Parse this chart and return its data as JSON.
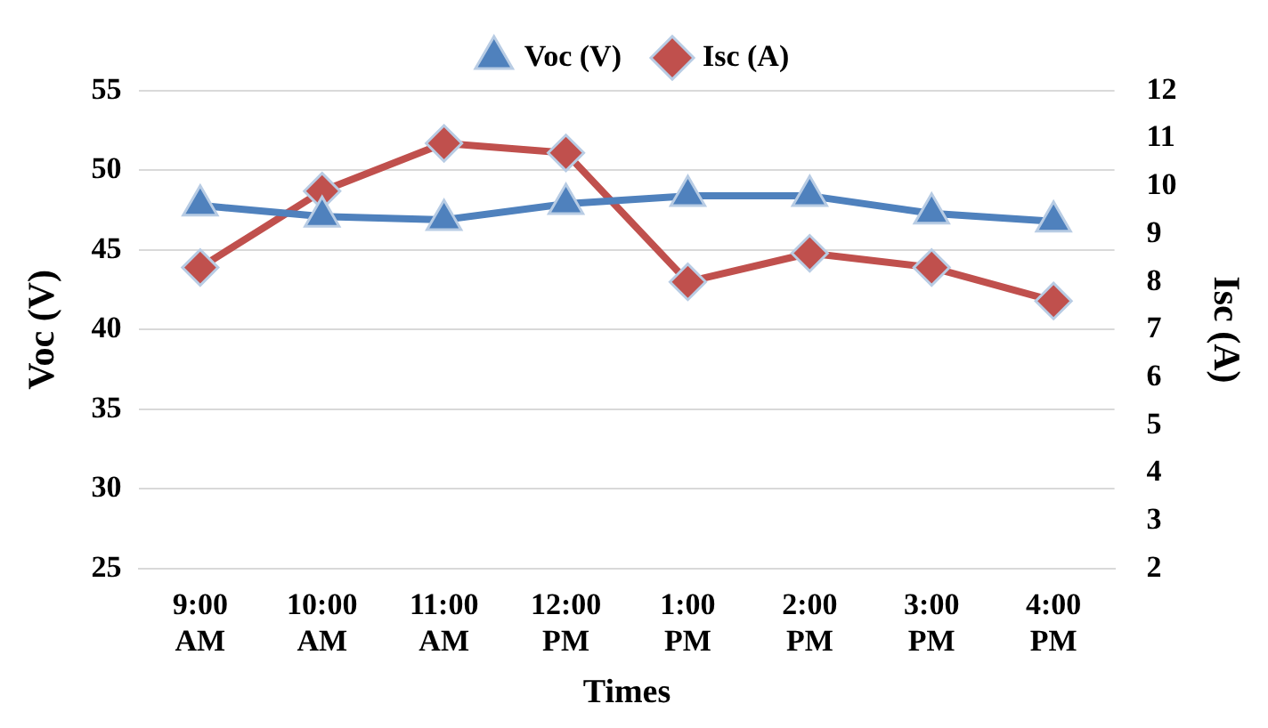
{
  "chart_data": {
    "type": "line",
    "xlabel": "Times",
    "ylabel": "Voc (V)",
    "y2label": "Isc (A)",
    "categories": [
      "9:00 AM",
      "10:00 AM",
      "11:00 AM",
      "12:00 PM",
      "1:00 PM",
      "2:00 PM",
      "3:00 PM",
      "4:00 PM"
    ],
    "series": [
      {
        "name": "Voc (V)",
        "color": "#4f81bd",
        "marker": "triangle",
        "values": [
          47.8,
          47.1,
          46.9,
          47.9,
          48.4,
          48.4,
          47.3,
          46.8
        ]
      },
      {
        "name": "Isc (A)",
        "color": "#c0504d",
        "marker": "diamond",
        "axis": "y2",
        "values": [
          8.3,
          9.9,
          10.9,
          10.7,
          8.0,
          8.6,
          8.3,
          7.6
        ]
      }
    ],
    "ylim": [
      25,
      55
    ],
    "yticks": [
      25,
      30,
      35,
      40,
      45,
      50,
      55
    ],
    "y2lim": [
      2,
      12
    ],
    "y2ticks": [
      2,
      3,
      4,
      5,
      6,
      7,
      8,
      9,
      10,
      11,
      12
    ],
    "grid": "y",
    "legend": "top"
  }
}
